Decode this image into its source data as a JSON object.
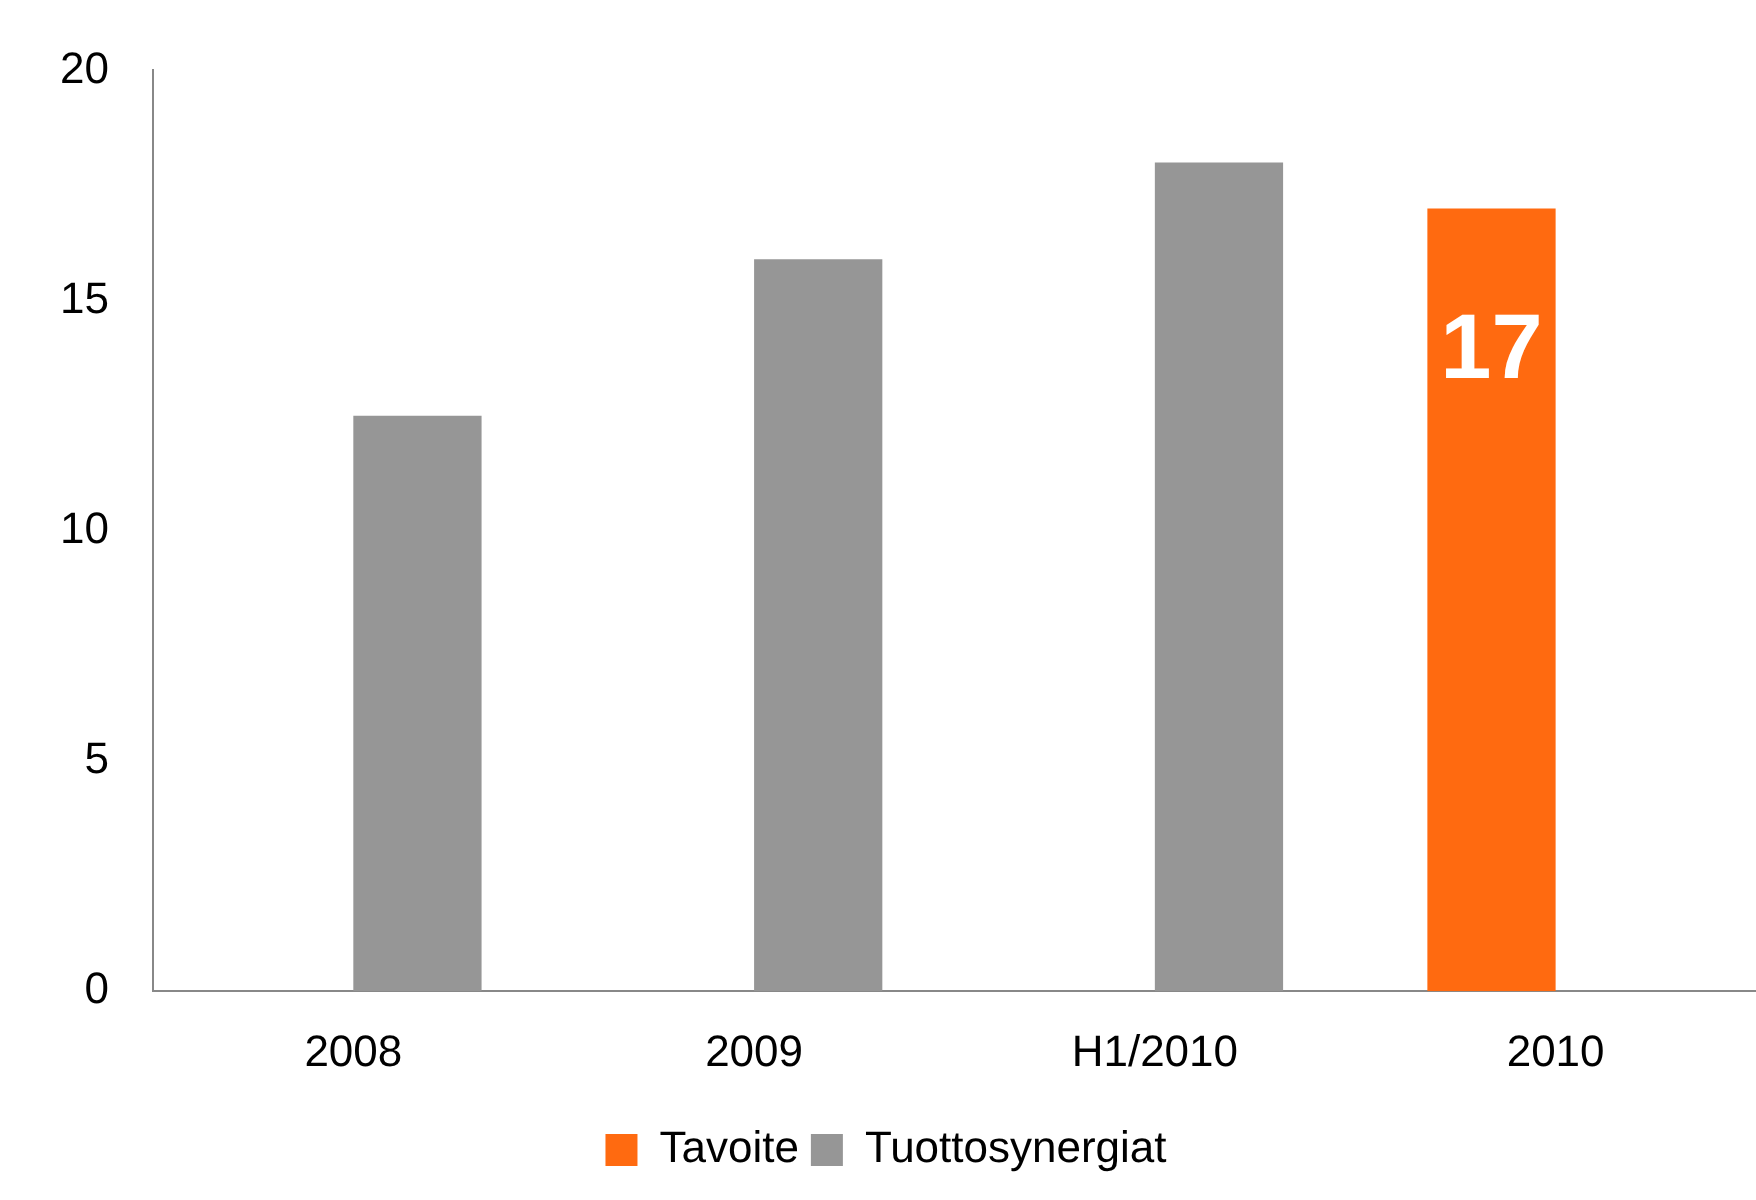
{
  "chart_data": {
    "type": "bar",
    "categories": [
      "2008",
      "2009",
      "H1/2010",
      "2010"
    ],
    "series": [
      {
        "name": "Tavoite",
        "color": "#ff6a10",
        "values": [
          null,
          null,
          null,
          17
        ],
        "value_labels": [
          null,
          null,
          null,
          "17"
        ]
      },
      {
        "name": "Tuottosynergiat",
        "color": "#969696",
        "values": [
          12.5,
          15.9,
          18,
          null
        ]
      }
    ],
    "ylim": [
      0,
      20
    ],
    "yticks": [
      0,
      5,
      10,
      15,
      20
    ],
    "grid": false,
    "legend": "bottom"
  }
}
